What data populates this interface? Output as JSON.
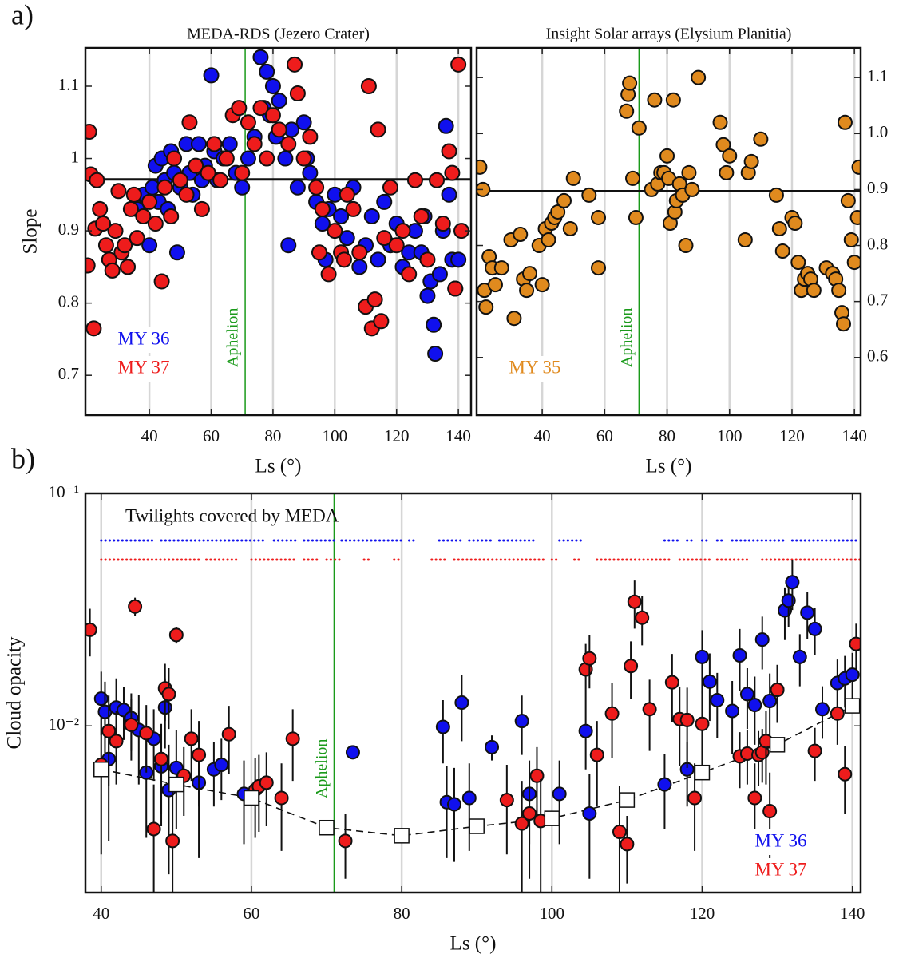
{
  "chart_data": [
    {
      "type": "scatter",
      "panel_label": "a)",
      "title": "MEDA-RDS (Jezero Crater)",
      "x_label": "Ls (°)",
      "y_label": "Slope",
      "xlim": [
        19.3,
        144.1
      ],
      "ylim": [
        0.645,
        1.153
      ],
      "xticks": [
        40,
        60,
        80,
        100,
        120,
        140
      ],
      "yticks": [
        0.7,
        0.8,
        0.9,
        1,
        1.1
      ],
      "grid": "x",
      "y_axis_side": "left",
      "legend": "lower left",
      "hline": 0.971,
      "annotation": {
        "text": "Aphelion",
        "x": 71
      },
      "annotation_color": "#1a9a1a",
      "series": [
        {
          "name": "MY 36",
          "color": "#1010ee",
          "x": [
            36,
            38,
            40,
            41,
            42,
            43,
            44,
            45,
            46,
            47,
            48,
            49,
            50,
            52,
            53,
            54,
            56,
            57,
            58,
            60,
            61,
            62,
            64,
            66,
            68,
            70,
            72,
            74,
            76,
            77,
            78,
            79,
            80,
            81,
            82,
            84,
            85,
            86,
            88,
            90,
            91,
            92,
            94,
            96,
            97,
            98,
            100,
            102,
            104,
            106,
            108,
            110,
            112,
            114,
            116,
            118,
            120,
            122,
            124,
            126,
            128,
            129,
            130,
            131,
            132,
            132.5,
            134,
            135,
            136,
            137,
            138,
            139,
            140
          ],
          "values": [
            0.93,
            0.95,
            0.88,
            0.96,
            0.99,
            0.94,
            1.0,
            0.97,
            0.93,
            1.01,
            0.98,
            0.87,
            0.96,
            1.02,
            0.98,
            0.95,
            1.02,
            0.97,
            0.99,
            1.115,
            1.01,
            0.97,
            1.0,
            1.02,
            0.98,
            0.96,
            1.0,
            1.03,
            1.14,
            1.07,
            1.12,
            1.06,
            1.1,
            1.03,
            1.08,
            1.0,
            0.88,
            1.04,
            0.96,
            1.05,
            1.0,
            0.98,
            0.94,
            0.91,
            0.86,
            0.93,
            0.95,
            0.92,
            0.89,
            0.96,
            0.85,
            0.88,
            0.92,
            0.86,
            0.94,
            0.88,
            0.91,
            0.85,
            0.87,
            0.9,
            0.87,
            0.92,
            0.81,
            0.83,
            0.77,
            0.73,
            0.84,
            0.9,
            1.045,
            0.95,
            0.86,
            0.82,
            0.86
          ]
        },
        {
          "name": "MY 37",
          "color": "#ee1c1c",
          "x": [
            20,
            20.5,
            21,
            22,
            22.5,
            23,
            24,
            25,
            26,
            27,
            28,
            29,
            30,
            31,
            32,
            33,
            34,
            35,
            36,
            38,
            40,
            42,
            44,
            45,
            47,
            48,
            50,
            52,
            53,
            55,
            57,
            59,
            61,
            63,
            65,
            67,
            69,
            70,
            72,
            74,
            76,
            78,
            80,
            82,
            85,
            87,
            88,
            90,
            92,
            94,
            95,
            96,
            98,
            100,
            102,
            103,
            104,
            106,
            108,
            110,
            111,
            112,
            113,
            114,
            115,
            116,
            118,
            120,
            122,
            124,
            126,
            128,
            130,
            133,
            135,
            137,
            138,
            139,
            140,
            141
          ],
          "values": [
            0.852,
            1.037,
            0.978,
            0.765,
            0.903,
            0.97,
            0.93,
            0.91,
            0.88,
            0.86,
            0.845,
            0.9,
            0.955,
            0.87,
            0.88,
            0.85,
            0.93,
            0.95,
            0.89,
            0.92,
            0.94,
            0.91,
            0.83,
            0.96,
            0.92,
            1.0,
            0.97,
            0.95,
            1.05,
            0.99,
            0.93,
            0.98,
            1.02,
            0.97,
            1.0,
            1.06,
            1.07,
            0.98,
            1.05,
            1.02,
            1.07,
            1.0,
            1.06,
            1.04,
            1.02,
            1.13,
            1.09,
            1.0,
            1.03,
            0.96,
            0.87,
            0.93,
            0.84,
            0.9,
            0.87,
            0.86,
            0.95,
            0.93,
            0.87,
            0.795,
            1.1,
            0.765,
            0.805,
            1.04,
            0.775,
            0.89,
            0.96,
            0.88,
            0.9,
            0.84,
            0.97,
            0.92,
            0.86,
            0.97,
            0.91,
            1.01,
            0.98,
            0.82,
            1.13,
            0.9
          ]
        }
      ]
    },
    {
      "type": "scatter",
      "title": "Insight Solar arrays (Elysium Planitia)",
      "x_label": "Ls (°)",
      "xlim": [
        19.0,
        142.0
      ],
      "ylim": [
        0.497,
        1.153
      ],
      "xticks": [
        40,
        60,
        80,
        100,
        120,
        140
      ],
      "yticks": [
        0.6,
        0.7,
        0.8,
        0.9,
        {
          "value": 1,
          "label": "1.0"
        },
        1.1
      ],
      "grid": "x",
      "y_axis_side": "right",
      "legend": "lower left",
      "hline": 0.897,
      "annotation": {
        "text": "Aphelion",
        "x": 71
      },
      "annotation_color": "#1a9a1a",
      "series": [
        {
          "name": "MY 35",
          "color": "#e08a1e",
          "x": [
            20,
            21,
            21.5,
            22,
            23,
            24,
            25,
            27,
            30,
            31,
            33,
            34,
            35,
            36,
            39,
            40,
            41,
            42,
            43,
            44,
            45,
            47,
            49,
            50,
            55,
            58,
            58,
            67,
            67.5,
            68,
            69,
            70,
            71,
            75,
            76,
            77,
            78,
            79,
            80,
            80.5,
            81,
            82,
            82.5,
            83,
            84,
            85,
            86,
            87,
            88,
            90,
            97,
            98,
            99,
            100,
            105,
            106,
            107,
            110,
            115,
            116,
            117,
            120,
            121,
            122,
            123,
            124,
            125,
            126,
            127,
            131,
            133,
            134,
            135,
            136,
            136.5,
            137,
            138,
            139,
            140,
            141,
            141.5
          ],
          "values": [
            0.94,
            0.9,
            0.72,
            0.69,
            0.78,
            0.76,
            0.73,
            0.76,
            0.81,
            0.67,
            0.82,
            0.74,
            0.72,
            0.75,
            0.8,
            0.73,
            0.83,
            0.81,
            0.84,
            0.85,
            0.86,
            0.88,
            0.83,
            0.92,
            0.89,
            0.85,
            0.76,
            1.04,
            1.07,
            1.09,
            0.92,
            0.85,
            1.01,
            0.9,
            1.06,
            0.91,
            0.93,
            0.93,
            0.96,
            0.92,
            0.84,
            1.06,
            0.86,
            0.88,
            0.91,
            0.89,
            0.8,
            0.93,
            0.9,
            1.1,
            1.02,
            0.98,
            0.93,
            0.96,
            0.81,
            0.93,
            0.95,
            0.99,
            0.89,
            0.83,
            0.79,
            0.85,
            0.84,
            0.77,
            0.72,
            0.74,
            0.75,
            0.74,
            0.72,
            0.76,
            0.75,
            0.74,
            0.72,
            0.68,
            0.66,
            1.02,
            0.88,
            0.81,
            0.77,
            0.85,
            0.94
          ]
        }
      ]
    },
    {
      "type": "errorbar",
      "panel_label": "b)",
      "x_label": "Ls (°)",
      "y_label": "Cloud opacity",
      "coverage_label": "Twilights covered by MEDA",
      "xlim": [
        37.9,
        141.1
      ],
      "ylim": [
        0.00192,
        0.1
      ],
      "y_scale": "log",
      "xticks": [
        40,
        60,
        80,
        100,
        120,
        140
      ],
      "yticks": [
        {
          "value": 0.1,
          "label": "10⁻¹"
        },
        {
          "value": 0.01,
          "label": "10⁻²"
        }
      ],
      "grid": "x",
      "y_axis_side": "left",
      "legend": "lower right",
      "annotation": {
        "text": "Aphelion",
        "x": 71
      },
      "annotation_color": "#1a9a1a",
      "fit": {
        "x": [
          40,
          50,
          60,
          70,
          80,
          90,
          100,
          110,
          120,
          130,
          140
        ],
        "values": [
          0.0065,
          0.0056,
          0.0049,
          0.00365,
          0.00337,
          0.0037,
          0.004,
          0.0048,
          0.0063,
          0.0083,
          0.0122
        ]
      },
      "series": [
        {
          "name": "MY 36",
          "color": "#1010ee",
          "coverage": [
            [
              40,
              47
            ],
            [
              48,
              62
            ],
            [
              63,
              66
            ],
            [
              67,
              71
            ],
            [
              72,
              80
            ],
            [
              81,
              82
            ],
            [
              85,
              88
            ],
            [
              89,
              92
            ],
            [
              93,
              98
            ],
            [
              101,
              104
            ],
            [
              115,
              117
            ],
            [
              118,
              119
            ],
            [
              120,
              121
            ],
            [
              122,
              123
            ],
            [
              124,
              131
            ],
            [
              132,
              141
            ]
          ],
          "x": [
            40,
            40.5,
            41,
            42,
            43,
            44,
            45,
            46,
            47,
            48,
            48.5,
            49,
            50,
            53,
            55,
            56,
            59,
            73.5,
            85.5,
            86,
            87,
            88,
            89,
            92,
            96,
            97,
            101,
            104.5,
            105,
            115,
            118,
            120,
            121,
            122,
            124,
            125,
            126,
            127,
            128,
            129,
            130,
            131,
            131.5,
            132,
            133,
            134,
            135,
            136,
            138,
            139,
            140
          ],
          "values": [
            0.0131,
            0.0115,
            0.0072,
            0.012,
            0.0117,
            0.0108,
            0.0096,
            0.0063,
            0.0088,
            0.0067,
            0.012,
            0.0053,
            0.0066,
            0.0057,
            0.0065,
            0.0068,
            0.0051,
            0.0077,
            0.0099,
            0.0047,
            0.0046,
            0.0126,
            0.0049,
            0.0081,
            0.0105,
            0.0051,
            0.0051,
            0.0095,
            0.0042,
            0.0056,
            0.0065,
            0.0198,
            0.0155,
            0.0129,
            0.0116,
            0.0201,
            0.0137,
            0.0123,
            0.0235,
            0.0128,
            0.0143,
            0.0314,
            0.0346,
            0.0415,
            0.0198,
            0.0307,
            0.0261,
            0.0118,
            0.0153,
            0.016,
            0.0166
          ],
          "errors": [
            0.004,
            0.004,
            0.004,
            0.004,
            0.003,
            0.003,
            0.004,
            0.003,
            0.003,
            0.003,
            0.004,
            0.003,
            0.003,
            0.003,
            0.002,
            0.002,
            0.002,
            0.0005,
            0.003,
            0.002,
            0.002,
            0.004,
            0.002,
            0.001,
            0.003,
            0.002,
            0.002,
            0.003,
            0.002,
            0.002,
            0.002,
            0.006,
            0.005,
            0.004,
            0.004,
            0.006,
            0.004,
            0.004,
            0.006,
            0.004,
            0.004,
            0.008,
            0.008,
            0.01,
            0.005,
            0.007,
            0.006,
            0.003,
            0.004,
            0.004,
            0.004
          ]
        },
        {
          "name": "MY 37",
          "color": "#ee1c1c",
          "coverage": [
            [
              40,
              53
            ],
            [
              54,
              58
            ],
            [
              60,
              66
            ],
            [
              67,
              69
            ],
            [
              70,
              72
            ],
            [
              75,
              76
            ],
            [
              79,
              80
            ],
            [
              84,
              86
            ],
            [
              87,
              99
            ],
            [
              100,
              101
            ],
            [
              103,
              104
            ],
            [
              106,
              116
            ],
            [
              117,
              121
            ],
            [
              122,
              126
            ],
            [
              128,
              141
            ]
          ],
          "x": [
            38.5,
            40,
            41,
            42,
            44,
            44.5,
            46,
            47,
            48,
            48.5,
            49,
            49.5,
            50,
            51,
            52,
            53,
            57,
            60.5,
            61,
            62,
            64,
            65.5,
            72.5,
            94,
            96,
            97,
            98,
            98.5,
            104.5,
            105,
            106,
            108,
            109,
            110,
            110.5,
            111,
            112,
            113,
            116,
            117,
            118,
            119,
            120,
            125,
            126,
            127,
            127.5,
            128,
            128.5,
            129,
            130,
            135,
            138,
            139,
            140.5
          ],
          "values": [
            0.0259,
            0.0068,
            0.0095,
            0.0086,
            0.0101,
            0.0326,
            0.0093,
            0.0036,
            0.0072,
            0.0145,
            0.0137,
            0.0032,
            0.0246,
            0.0061,
            0.0088,
            0.0075,
            0.0092,
            0.0053,
            0.0055,
            0.0057,
            0.0049,
            0.0088,
            0.0032,
            0.0048,
            0.0038,
            0.0042,
            0.0061,
            0.0039,
            0.0175,
            0.0195,
            0.0075,
            0.0113,
            0.0035,
            0.0031,
            0.0181,
            0.0342,
            0.0292,
            0.0118,
            0.0154,
            0.0107,
            0.0106,
            0.0049,
            0.0102,
            0.0074,
            0.0076,
            0.0049,
            0.0075,
            0.0077,
            0.0086,
            0.0043,
            0.0143,
            0.0078,
            0.0113,
            0.0062,
            0.0225
          ],
          "errors": [
            0.006,
            0.004,
            0.004,
            0.003,
            0.003,
            0.003,
            0.003,
            0.002,
            0.003,
            0.004,
            0.004,
            0.002,
            0.002,
            0.002,
            0.003,
            0.003,
            0.003,
            0.002,
            0.002,
            0.002,
            0.002,
            0.003,
            0.001,
            0.002,
            0.002,
            0.002,
            0.002,
            0.002,
            0.005,
            0.005,
            0.003,
            0.004,
            0.002,
            0.001,
            0.005,
            0.008,
            0.007,
            0.004,
            0.005,
            0.004,
            0.004,
            0.002,
            0.004,
            0.002,
            0.002,
            0.002,
            0.002,
            0.002,
            0.003,
            0.002,
            0.004,
            0.002,
            0.003,
            0.002,
            0.005
          ]
        }
      ]
    }
  ]
}
